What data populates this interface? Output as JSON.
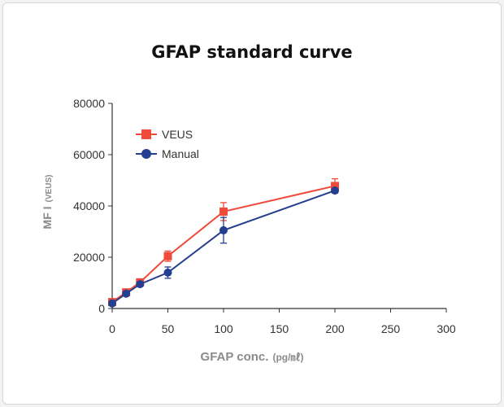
{
  "chart_data": {
    "type": "line",
    "title": "GFAP standard curve",
    "xlabel": "GFAP conc.",
    "xlabel_unit": "(pg/㎖)",
    "ylabel": "MF I",
    "ylabel_unit": "(VEUS)",
    "xlim": [
      0,
      300
    ],
    "ylim": [
      0,
      80000
    ],
    "x_ticks": [
      0,
      50,
      100,
      150,
      200,
      250,
      300
    ],
    "y_ticks": [
      0,
      20000,
      40000,
      60000,
      80000
    ],
    "grid": false,
    "legend_position": "top-left",
    "series": [
      {
        "name": "VEUS",
        "color": "#f04a3a",
        "marker": "square",
        "x": [
          0,
          12.5,
          25,
          50,
          100,
          200
        ],
        "y": [
          2500,
          6300,
          10200,
          20400,
          37800,
          47800
        ],
        "error": [
          400,
          800,
          800,
          2000,
          3500,
          2800
        ]
      },
      {
        "name": "Manual",
        "color": "#243f8f",
        "marker": "circle",
        "x": [
          0,
          12.5,
          25,
          50,
          100,
          200
        ],
        "y": [
          2000,
          5800,
          9500,
          14000,
          30500,
          46000
        ],
        "error": [
          400,
          700,
          700,
          2200,
          5000,
          800
        ]
      }
    ]
  }
}
